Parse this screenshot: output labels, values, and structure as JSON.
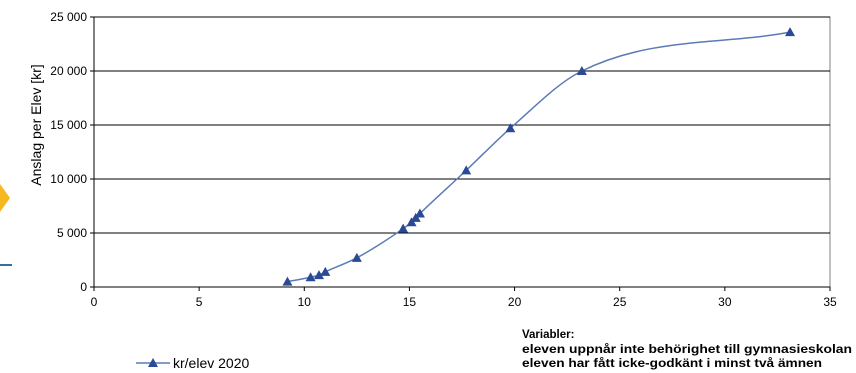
{
  "chart_data": {
    "type": "line",
    "title": "",
    "xlabel": "",
    "ylabel": "Anslag per Elev [kr]",
    "xlim": [
      0,
      35
    ],
    "ylim": [
      0,
      25000
    ],
    "x_ticks": [
      0,
      5,
      10,
      15,
      20,
      25,
      30,
      35
    ],
    "x_tick_labels": [
      "0",
      "5",
      "10",
      "15",
      "20",
      "25",
      "30",
      "35"
    ],
    "y_ticks": [
      0,
      5000,
      10000,
      15000,
      20000,
      25000
    ],
    "y_tick_labels": [
      "0",
      "5 000",
      "10 000",
      "15 000",
      "20 000",
      "25 000"
    ],
    "grid": "horizontal",
    "legend_position": "bottom-left",
    "series": [
      {
        "name": "kr/elev 2020",
        "color": "#5a7bb5",
        "marker": "triangle",
        "marker_color": "#2a4a95",
        "x": [
          9.2,
          10.3,
          10.7,
          11.0,
          12.5,
          14.7,
          15.1,
          15.3,
          15.5,
          17.7,
          19.8,
          23.2,
          33.1
        ],
        "y": [
          500,
          900,
          1100,
          1400,
          2700,
          5400,
          6000,
          6400,
          6800,
          10800,
          14700,
          20000,
          23600
        ]
      }
    ],
    "annotation": {
      "heading": "Variabler:",
      "lines": [
        "eleven uppnår inte behörighet till gymnasieskolan",
        "eleven har fått icke-godkänt i minst två ämnen"
      ]
    }
  },
  "decorations": {
    "left_arrow_color": "#f5b81f",
    "left_line_color": "#3a6e9a"
  }
}
